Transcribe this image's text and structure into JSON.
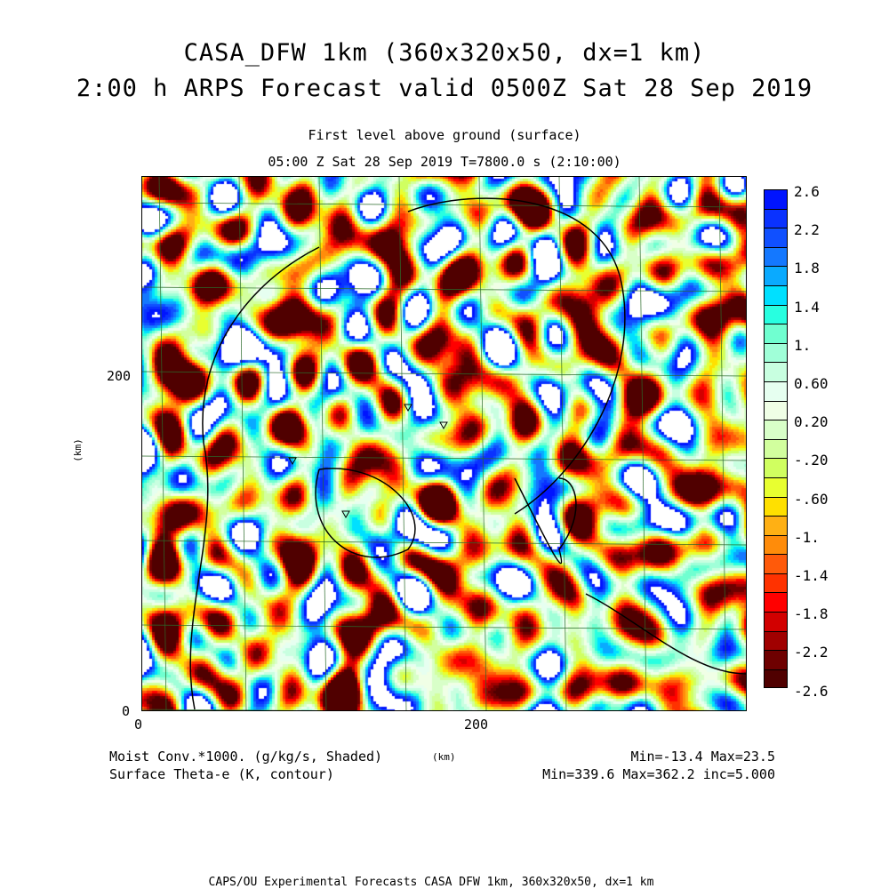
{
  "title_line1": "CASA_DFW 1km (360x320x50, dx=1 km)",
  "title_line2": "2:00 h ARPS Forecast valid 0500Z Sat 28 Sep 2019",
  "subtitle_line1": "First level above ground (surface)",
  "subtitle_line2": "05:00 Z Sat 28 Sep 2019   T=7800.0 s (2:10:00)",
  "footer_left1": "Moist Conv.*1000. (g/kg/s, Shaded)",
  "footer_left2": "Surface Theta-e (K, contour)",
  "footer_center": "(km)",
  "footer_right1": "Min=-13.4 Max=23.5",
  "footer_right2": "Min=339.6 Max=362.2 inc=5.000",
  "credit": "CAPS/OU Experimental Forecasts  CASA DFW 1km, 360x320x50, dx=1 km",
  "chart_data": {
    "type": "heatmap",
    "title": "Moist Conv.*1000. (g/kg/s, Shaded)",
    "xlabel": "(km)",
    "ylabel": "(km)",
    "xlim": [
      0,
      360
    ],
    "ylim": [
      0,
      320
    ],
    "x_ticks": [
      "0",
      "200"
    ],
    "y_ticks": [
      "0",
      "200"
    ],
    "x_tick_values": [
      0,
      200
    ],
    "y_tick_values": [
      0,
      200
    ],
    "colorbar": {
      "range": [
        -2.6,
        2.6
      ],
      "step": 0.2,
      "labels": [
        "2.6",
        "2.2",
        "1.8",
        "1.4",
        "1.",
        "0.60",
        "0.20",
        "-.20",
        "-.60",
        "-1.",
        "-1.4",
        "-1.8",
        "-2.2",
        "-2.6"
      ],
      "colors": [
        "#0014ff",
        "#0a32ff",
        "#1050ff",
        "#1478ff",
        "#0aaaff",
        "#00e0ff",
        "#28ffe0",
        "#70ffd0",
        "#a0ffd8",
        "#c8ffe0",
        "#e6fff0",
        "#f0ffe6",
        "#d8ffc8",
        "#d2ff9e",
        "#d0ff60",
        "#e8ff30",
        "#ffe000",
        "#ffb014",
        "#ff8c0a",
        "#ff5a0a",
        "#ff3200",
        "#ff0000",
        "#d20000",
        "#a00000",
        "#6e0000",
        "#500000"
      ]
    },
    "field_min": -13.4,
    "field_max": 23.5,
    "contour_field": "Surface Theta-e (K, contour)",
    "contour_min": 339.6,
    "contour_max": 362.2,
    "contour_inc": 5.0
  }
}
